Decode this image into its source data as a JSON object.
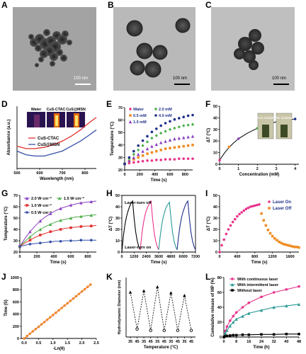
{
  "panels": {
    "A": {
      "letter": "A",
      "scale_label": "100 nm"
    },
    "B": {
      "letter": "B",
      "scale_label": "100 nm"
    },
    "C": {
      "letter": "C",
      "scale_label": "100 nm"
    },
    "D": {
      "letter": "D"
    },
    "E": {
      "letter": "E"
    },
    "F": {
      "letter": "F"
    },
    "G": {
      "letter": "G"
    },
    "H": {
      "letter": "H"
    },
    "I": {
      "letter": "I"
    },
    "J": {
      "letter": "J"
    },
    "K": {
      "letter": "K"
    },
    "L": {
      "letter": "L"
    }
  },
  "colors": {
    "red": "#e0302c",
    "blue": "#3550a8",
    "magenta": "#e8338c",
    "orange": "#f08c23",
    "teal": "#2a9a95",
    "purple": "#8a3ec0",
    "green": "#4db04a",
    "navy": "#1f2f8a",
    "black": "#000000"
  },
  "chart_data": [
    {
      "id": "D",
      "type": "line",
      "xlabel": "Wavelength (nm)",
      "ylabel": "Absorbance (a.u.)",
      "xlim": [
        500,
        850
      ],
      "xticks": [
        500,
        600,
        700,
        800
      ],
      "inset_labels": [
        "Water",
        "CuS-CTAC",
        "CuS@MSN"
      ],
      "series": [
        {
          "name": "CuS-CTAC",
          "color": "red",
          "x": [
            500,
            540,
            580,
            620,
            660,
            700,
            740,
            780,
            820,
            850
          ],
          "y": [
            0.18,
            0.16,
            0.16,
            0.17,
            0.19,
            0.22,
            0.26,
            0.31,
            0.37,
            0.41
          ]
        },
        {
          "name": "CuS@MSN",
          "color": "blue",
          "x": [
            500,
            540,
            580,
            620,
            660,
            700,
            740,
            780,
            820,
            850
          ],
          "y": [
            0.14,
            0.11,
            0.1,
            0.1,
            0.12,
            0.14,
            0.18,
            0.22,
            0.27,
            0.31
          ]
        }
      ]
    },
    {
      "id": "E",
      "type": "scatter",
      "xlabel": "Time (s)",
      "ylabel": "Temperature (°C)",
      "xlim": [
        0,
        900
      ],
      "ylim": [
        20,
        70
      ],
      "xticks": [
        0,
        200,
        400,
        600,
        800
      ],
      "yticks": [
        20,
        30,
        40,
        50,
        60,
        70
      ],
      "x": [
        0,
        60,
        120,
        180,
        240,
        300,
        360,
        420,
        480,
        540,
        600,
        660,
        720,
        780,
        840,
        900
      ],
      "series": [
        {
          "name": "Water",
          "color": "magenta",
          "y": [
            25,
            25.5,
            26,
            26.5,
            27,
            27.5,
            27.5,
            28,
            28,
            28.5,
            28.5,
            28.5,
            29,
            29,
            29,
            29
          ]
        },
        {
          "name": "0.5 mM",
          "color": "orange",
          "y": [
            25,
            27,
            28.5,
            30,
            31.5,
            33,
            34,
            35,
            36,
            37,
            37.5,
            38,
            38.5,
            39,
            39.5,
            40
          ]
        },
        {
          "name": "1.0 mM",
          "color": "purple",
          "y": [
            25,
            27.5,
            30,
            32.5,
            35,
            37,
            39,
            40.5,
            42,
            43,
            44,
            45,
            45.5,
            46,
            46.5,
            47
          ]
        },
        {
          "name": "2.0 mM",
          "color": "green",
          "y": [
            25,
            29,
            32.5,
            36,
            39.5,
            42.5,
            45.5,
            47.5,
            49.5,
            51,
            52.5,
            53.5,
            54.5,
            55.5,
            56,
            56.5
          ]
        },
        {
          "name": "4.0 mM",
          "color": "navy",
          "y": [
            25,
            30,
            35,
            39.5,
            43.5,
            47,
            50.5,
            53,
            55.5,
            57.5,
            59,
            60.5,
            61.5,
            62.5,
            63.5,
            64
          ]
        }
      ]
    },
    {
      "id": "F",
      "type": "scatter",
      "xlabel": "Concentration (mM)",
      "ylabel": "ΔT (°C)",
      "xlim": [
        0,
        4.2
      ],
      "ylim": [
        0,
        50
      ],
      "xticks": [
        0,
        1,
        2,
        3,
        4
      ],
      "yticks": [
        0,
        10,
        20,
        30,
        40,
        50
      ],
      "inset_labels": [
        "Before irradiation",
        "After irradiation"
      ],
      "points": [
        {
          "x": 0,
          "y": 3.5,
          "color": "magenta"
        },
        {
          "x": 0.5,
          "y": 15,
          "color": "orange"
        },
        {
          "x": 1,
          "y": 22,
          "color": "purple"
        },
        {
          "x": 2,
          "y": 31,
          "color": "green"
        },
        {
          "x": 4,
          "y": 39,
          "color": "navy"
        }
      ],
      "fit": {
        "x": [
          0,
          0.25,
          0.5,
          0.75,
          1,
          1.5,
          2,
          2.5,
          3,
          3.5,
          4
        ],
        "y": [
          3.5,
          9.5,
          14.5,
          18.5,
          22,
          27,
          31,
          34,
          36.5,
          38,
          39
        ]
      }
    },
    {
      "id": "G",
      "type": "line",
      "xlabel": "Time (s)",
      "ylabel": "Temperature (°C)",
      "xlim": [
        0,
        900
      ],
      "ylim": [
        20,
        70
      ],
      "xticks": [
        0,
        200,
        400,
        600,
        800
      ],
      "yticks": [
        20,
        30,
        40,
        50,
        60,
        70
      ],
      "x": [
        0,
        60,
        120,
        180,
        240,
        300,
        360,
        420,
        480,
        540,
        600,
        660,
        720,
        780,
        840,
        900
      ],
      "series": [
        {
          "name": "2.0 W·cm⁻²",
          "color": "purple",
          "y": [
            25,
            32,
            38,
            43,
            47.5,
            51,
            54,
            56.5,
            58.5,
            60,
            61.5,
            62.5,
            63.5,
            64,
            64.5,
            65
          ]
        },
        {
          "name": "1.5 W·cm⁻²",
          "color": "green",
          "y": [
            25,
            29.5,
            33.5,
            37,
            40,
            42.5,
            44.5,
            46.5,
            48,
            49,
            50,
            51,
            51.5,
            52,
            52.5,
            53
          ]
        },
        {
          "name": "1.0 W·cm⁻²",
          "color": "red",
          "y": [
            25,
            28,
            30.5,
            33,
            35,
            36.5,
            38,
            39,
            40,
            41,
            41.5,
            42,
            42.5,
            43,
            43,
            43.5
          ]
        },
        {
          "name": "0.5 W·cm⁻²",
          "color": "blue",
          "y": [
            25,
            26,
            27,
            27.5,
            28,
            28.5,
            29,
            29.5,
            29.5,
            30,
            30,
            30,
            30.5,
            30.5,
            30.5,
            30.5
          ]
        }
      ]
    },
    {
      "id": "H",
      "type": "line",
      "xlabel": "Time (s)",
      "ylabel": "ΔT (°C)",
      "xlim": [
        0,
        7200
      ],
      "ylim": [
        0,
        50
      ],
      "xticks": [
        0,
        1200,
        2400,
        3600,
        4800,
        6000,
        7200
      ],
      "yticks": [
        0,
        10,
        20,
        30,
        40,
        50
      ],
      "annotations": [
        "Laser-turn off",
        "Laser-turn on"
      ],
      "cycles": [
        {
          "color": "black",
          "x": [
            0,
            150,
            300,
            450,
            600,
            750,
            900,
            1050,
            1200,
            1350,
            1500,
            1650,
            1800
          ],
          "y": [
            0,
            14,
            24,
            31,
            36,
            40,
            43,
            45,
            30,
            18,
            10,
            5,
            2
          ]
        },
        {
          "color": "magenta",
          "x": [
            1800,
            1950,
            2100,
            2250,
            2400,
            2550,
            2700,
            2850,
            3000,
            3150,
            3300,
            3450,
            3600
          ],
          "y": [
            2,
            15,
            25,
            32,
            37,
            40,
            43,
            45,
            30,
            18,
            10,
            5,
            2
          ]
        },
        {
          "color": "teal",
          "x": [
            3600,
            3750,
            3900,
            4050,
            4200,
            4350,
            4500,
            4650,
            4800,
            4950,
            5100,
            5250,
            5400
          ],
          "y": [
            2,
            14,
            24,
            31,
            36,
            40,
            42,
            44,
            30,
            18,
            10,
            5,
            2
          ]
        },
        {
          "color": "navy",
          "x": [
            5400,
            5550,
            5700,
            5850,
            6000,
            6150,
            6300,
            6450,
            6600,
            6750,
            6900,
            7050,
            7200
          ],
          "y": [
            2,
            14,
            24,
            31,
            36,
            40,
            43,
            45,
            30,
            18,
            10,
            5,
            2
          ]
        }
      ]
    },
    {
      "id": "I",
      "type": "scatter",
      "xlabel": "Time (s)",
      "ylabel": "ΔT (°C)",
      "xlim": [
        0,
        1800
      ],
      "ylim": [
        0,
        50
      ],
      "xticks": [
        0,
        400,
        800,
        1200,
        1600
      ],
      "yticks": [
        0,
        10,
        20,
        30,
        40,
        50
      ],
      "series": [
        {
          "name": "Laser On",
          "color": "magenta",
          "x": [
            0,
            50,
            100,
            150,
            200,
            250,
            300,
            350,
            400,
            450,
            500,
            550,
            600,
            650,
            700,
            750,
            800,
            850,
            900
          ],
          "y": [
            0,
            6,
            11,
            16,
            20,
            23.5,
            26.5,
            29,
            31.5,
            33.5,
            35,
            36.5,
            38,
            39,
            40,
            40.5,
            41,
            41.5,
            42
          ]
        },
        {
          "name": "Laser Off",
          "color": "orange",
          "x": [
            950,
            1000,
            1050,
            1100,
            1150,
            1200,
            1250,
            1300,
            1350,
            1400,
            1450,
            1500,
            1550,
            1600,
            1650,
            1700,
            1750,
            1800
          ],
          "y": [
            34,
            28,
            23.5,
            19.5,
            16.5,
            14,
            12,
            10.5,
            9,
            8,
            7,
            6.5,
            6,
            5.5,
            5,
            4.5,
            4.5,
            4
          ]
        }
      ]
    },
    {
      "id": "J",
      "type": "line",
      "xlabel": "-Ln(θ)",
      "ylabel": "Time (S)",
      "xlim": [
        -0.1,
        2.5
      ],
      "ylim": [
        0,
        1000
      ],
      "xticks": [
        0.0,
        0.5,
        1.0,
        1.5,
        2.0,
        2.5
      ],
      "yticks": [
        0,
        200,
        400,
        600,
        800,
        1000
      ],
      "x": [
        0,
        0.1,
        0.2,
        0.3,
        0.4,
        0.5,
        0.6,
        0.7,
        0.8,
        0.9,
        1.0,
        1.1,
        1.2,
        1.3,
        1.4,
        1.5,
        1.6,
        1.7,
        1.8,
        1.9,
        2.0,
        2.1,
        2.2,
        2.3
      ],
      "y": [
        0,
        38,
        77,
        115,
        154,
        192,
        231,
        269,
        308,
        346,
        385,
        423,
        462,
        500,
        539,
        577,
        616,
        654,
        693,
        731,
        770,
        808,
        847,
        885
      ]
    },
    {
      "id": "K",
      "type": "line",
      "xlabel": "Temperature (°C)",
      "ylabel": "Hydrodynamic Diameter (nm)",
      "ylim": [
        150,
        240
      ],
      "categories": [
        "35",
        "45",
        "35",
        "45",
        "35",
        "45",
        "35",
        "45",
        "35",
        "45"
      ],
      "y": [
        218,
        162,
        220,
        160,
        226,
        160,
        217,
        160,
        213,
        160
      ]
    },
    {
      "id": "L",
      "type": "line",
      "xlabel": "Time (h)",
      "ylabel": "Cumulative release of MP (%)",
      "xlim": [
        0,
        48
      ],
      "ylim": [
        0,
        80
      ],
      "xticks": [
        0,
        8,
        16,
        24,
        32,
        40,
        48
      ],
      "yticks": [
        0,
        20,
        40,
        60,
        80
      ],
      "x": [
        0,
        1,
        2,
        4,
        6,
        8,
        12,
        16,
        24,
        32,
        40,
        48
      ],
      "series": [
        {
          "name": "With continuous laser",
          "color": "magenta",
          "y": [
            0,
            8,
            14,
            22,
            28,
            33,
            40,
            46,
            54,
            60,
            64,
            68
          ]
        },
        {
          "name": "With intermittent laser",
          "color": "teal",
          "y": [
            0,
            5,
            9,
            15,
            20,
            24,
            28,
            32,
            36,
            40,
            42,
            44
          ]
        },
        {
          "name": "Without laser",
          "color": "black",
          "y": [
            0,
            1,
            1.5,
            2,
            2.5,
            2.5,
            3,
            3,
            3.5,
            3.5,
            4,
            4
          ]
        }
      ]
    }
  ]
}
